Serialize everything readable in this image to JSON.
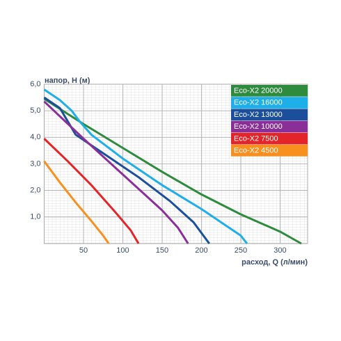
{
  "chart_data": {
    "type": "line",
    "y_label": "напор, Н (м)",
    "x_label": "расход, Q (л/мин)",
    "xlim": [
      0,
      335
    ],
    "ylim": [
      0,
      6
    ],
    "xticks": [
      50,
      100,
      150,
      200,
      250,
      300
    ],
    "yticks": [
      {
        "value": 1,
        "label": "1,0"
      },
      {
        "value": 2,
        "label": "2,0"
      },
      {
        "value": 3,
        "label": "3,0"
      },
      {
        "value": 4,
        "label": "4,0"
      },
      {
        "value": 5,
        "label": "5,0"
      },
      {
        "value": 6,
        "label": "6,0"
      }
    ],
    "grid": true,
    "legend": "top-right",
    "series": [
      {
        "name": "Eco-X2 20000",
        "color": "#2e8b3e",
        "x": [
          0,
          50,
          100,
          150,
          200,
          250,
          300,
          327
        ],
        "values": [
          5.45,
          4.5,
          3.6,
          2.7,
          1.85,
          1.1,
          0.45,
          0
        ]
      },
      {
        "name": "Eco-X2 16000",
        "color": "#1eaee8",
        "x": [
          0,
          20,
          35,
          45,
          60,
          100,
          150,
          200,
          230,
          250,
          258
        ],
        "values": [
          5.8,
          5.4,
          5.0,
          4.6,
          4.1,
          3.2,
          2.2,
          1.3,
          0.7,
          0.3,
          0
        ]
      },
      {
        "name": "Eco-X2 13000",
        "color": "#1b4f9c",
        "x": [
          0,
          20,
          30,
          40,
          80,
          120,
          160,
          190,
          210
        ],
        "values": [
          5.5,
          5.1,
          4.6,
          4.1,
          3.3,
          2.5,
          1.6,
          0.8,
          0
        ]
      },
      {
        "name": "Eco-X2 10000",
        "color": "#8b2f98",
        "x": [
          0,
          50,
          100,
          150,
          170,
          183
        ],
        "values": [
          5.35,
          3.95,
          2.6,
          1.25,
          0.6,
          0
        ]
      },
      {
        "name": "Eco-X2 7500",
        "color": "#e32428",
        "x": [
          0,
          30,
          60,
          90,
          110,
          120
        ],
        "values": [
          3.95,
          3.1,
          2.2,
          1.2,
          0.5,
          0
        ]
      },
      {
        "name": "Eco-X2 4500",
        "color": "#f7901e",
        "x": [
          0,
          20,
          40,
          60,
          75,
          82
        ],
        "values": [
          3.1,
          2.3,
          1.55,
          0.85,
          0.3,
          0
        ]
      }
    ]
  }
}
